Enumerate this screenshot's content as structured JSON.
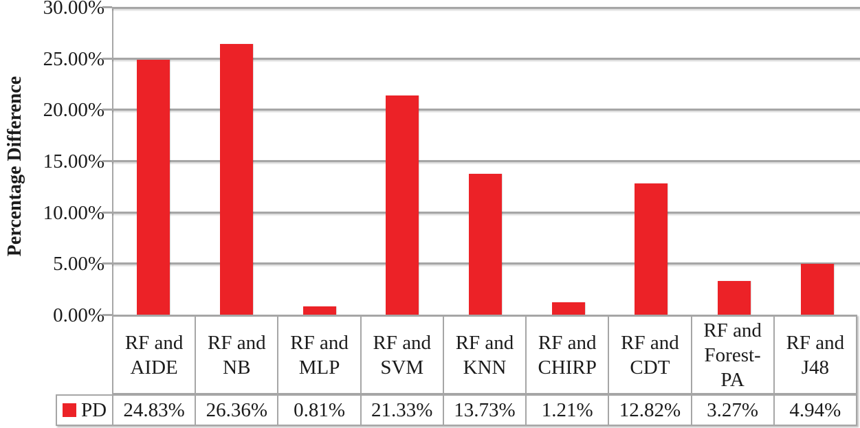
{
  "chart_data": {
    "type": "bar",
    "title": "",
    "xlabel": "",
    "ylabel": "Percentage Difference",
    "categories": [
      "RF and AIDE",
      "RF and NB",
      "RF and MLP",
      "RF and SVM",
      "RF and KNN",
      "RF and CHIRP",
      "RF and CDT",
      "RF and Forest-PA",
      "RF and J48"
    ],
    "category_label_lines": [
      [
        "RF and",
        "AIDE"
      ],
      [
        "RF and",
        "NB"
      ],
      [
        "RF and",
        "MLP"
      ],
      [
        "RF and",
        "SVM"
      ],
      [
        "RF and",
        "KNN"
      ],
      [
        "RF and",
        "CHIRP"
      ],
      [
        "RF and",
        "CDT"
      ],
      [
        "RF and",
        "Forest-",
        "PA"
      ],
      [
        "RF and",
        "J48"
      ]
    ],
    "series": [
      {
        "name": "PD",
        "values": [
          24.83,
          26.36,
          0.81,
          21.33,
          13.73,
          1.21,
          12.82,
          3.27,
          4.94
        ],
        "value_labels": [
          "24.83%",
          "26.36%",
          "0.81%",
          "21.33%",
          "13.73%",
          "1.21%",
          "12.82%",
          "3.27%",
          "4.94%"
        ]
      }
    ],
    "ylim": [
      0,
      30
    ],
    "ytick_interval": 5,
    "ytick_values": [
      30,
      25,
      20,
      15,
      10,
      5,
      0
    ],
    "ytick_labels": [
      "30.00%",
      "25.00%",
      "20.00%",
      "15.00%",
      "10.00%",
      "5.00%",
      "0.00%"
    ],
    "grid": true,
    "legend_position": "bottom-table",
    "colors": {
      "bar": "#EC2227",
      "gridline": "#A6A6A6",
      "border": "#A6A6A6",
      "text": "#1B1B1B",
      "background": "#FFFFFF"
    }
  }
}
